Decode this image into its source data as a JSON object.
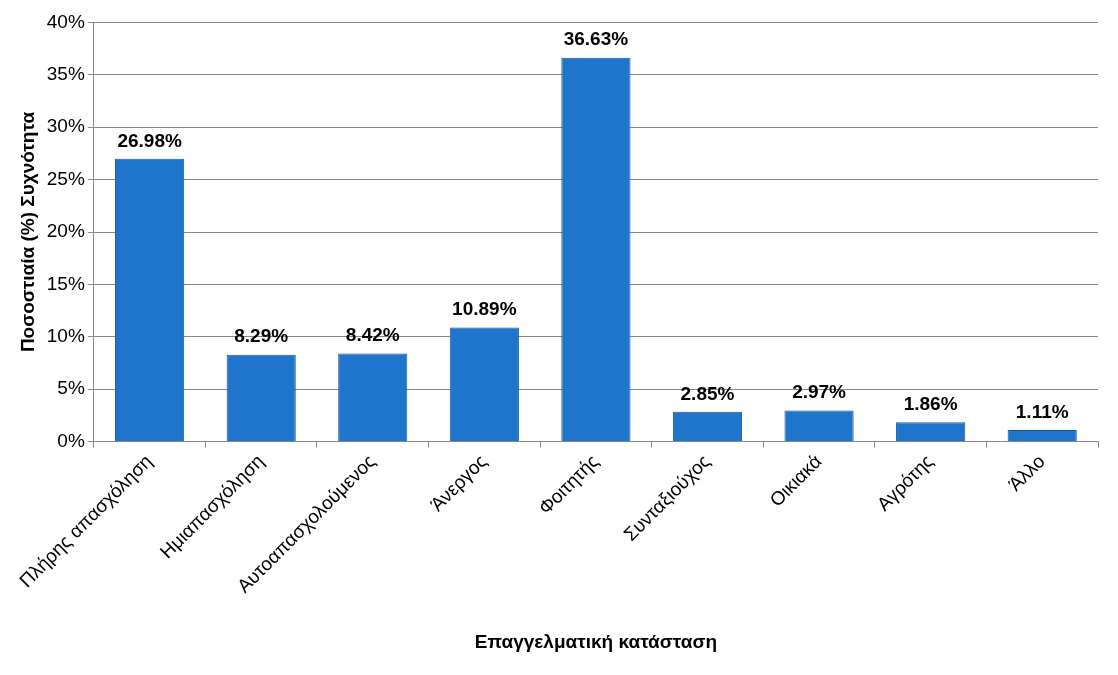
{
  "chart_data": {
    "type": "bar",
    "xlabel": "Επαγγελματική κατάσταση",
    "ylabel": "Ποσοστιαία (%) Συχνότητα",
    "categories": [
      "Πλήρης απασχόληση",
      "Ημιαπασχόληση",
      "Αυτοαπασχολούμενος",
      "Άνεργος",
      "Φοιτητής",
      "Συνταξιούχος",
      "Οικιακά",
      "Αγρότης",
      "Άλλο"
    ],
    "values": [
      26.98,
      8.29,
      8.42,
      10.89,
      36.63,
      2.85,
      2.97,
      1.86,
      1.11
    ],
    "value_labels": [
      "26.98%",
      "8.29%",
      "8.42%",
      "10.89%",
      "36.63%",
      "2.85%",
      "2.97%",
      "1.86%",
      "1.11%"
    ],
    "color": "#1f74cc",
    "ylim": [
      0,
      40
    ],
    "yticks": [
      {
        "value": 0,
        "label": "0%"
      },
      {
        "value": 5,
        "label": "5%"
      },
      {
        "value": 10,
        "label": "10%"
      },
      {
        "value": 15,
        "label": "15%"
      },
      {
        "value": 20,
        "label": "20%"
      },
      {
        "value": 25,
        "label": "25%"
      },
      {
        "value": 30,
        "label": "30%"
      },
      {
        "value": 35,
        "label": "35%"
      },
      {
        "value": 40,
        "label": "40%"
      }
    ],
    "grid": "y",
    "legend": false
  }
}
